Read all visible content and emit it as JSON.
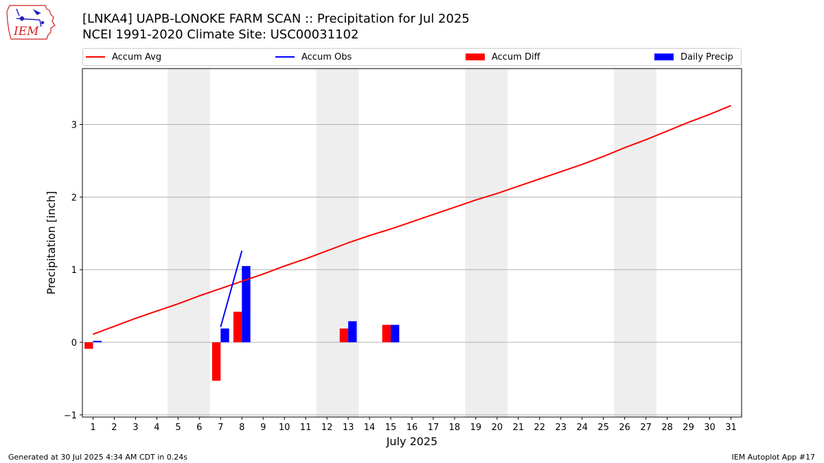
{
  "header": {
    "title_line1": "[LNKA4] UAPB-LONOKE FARM SCAN :: Precipitation for Jul 2025",
    "title_line2": "NCEI 1991-2020 Climate Site: USC00031102",
    "logo_text": "IEM"
  },
  "footer": {
    "left": "Generated at 30 Jul 2025 4:34 AM CDT in 0.24s",
    "right": "IEM Autoplot App #17"
  },
  "colors": {
    "avg": "#ff0000",
    "obs": "#0000ff",
    "diff": "#ff0000",
    "daily": "#0000ff",
    "weekend_band": "#eeeeee",
    "grid": "#b0b0b0"
  },
  "chart_data": {
    "type": "bar",
    "xlabel": "July 2025",
    "ylabel": "Precipitation [inch]",
    "xlim": [
      0.5,
      31.5
    ],
    "ylim": [
      -1.03,
      3.77
    ],
    "x_ticks": [
      1,
      2,
      3,
      4,
      5,
      6,
      7,
      8,
      9,
      10,
      11,
      12,
      13,
      14,
      15,
      16,
      17,
      18,
      19,
      20,
      21,
      22,
      23,
      24,
      25,
      26,
      27,
      28,
      29,
      30,
      31
    ],
    "y_ticks": [
      -1,
      0,
      1,
      2,
      3
    ],
    "grid": "y",
    "legend_position": "top",
    "weekend_bands": [
      [
        4.5,
        6.5
      ],
      [
        11.5,
        13.5
      ],
      [
        18.5,
        20.5
      ],
      [
        25.5,
        27.5
      ]
    ],
    "series": [
      {
        "name": "Accum Avg",
        "kind": "line",
        "x": [
          1,
          2,
          3,
          4,
          5,
          6,
          7,
          8,
          9,
          10,
          11,
          12,
          13,
          14,
          15,
          16,
          17,
          18,
          19,
          20,
          21,
          22,
          23,
          24,
          25,
          26,
          27,
          28,
          29,
          30,
          31
        ],
        "values": [
          0.11,
          0.22,
          0.33,
          0.43,
          0.53,
          0.64,
          0.74,
          0.84,
          0.94,
          1.05,
          1.15,
          1.26,
          1.37,
          1.47,
          1.56,
          1.66,
          1.76,
          1.86,
          1.96,
          2.05,
          2.15,
          2.25,
          2.35,
          2.45,
          2.56,
          2.68,
          2.79,
          2.91,
          3.03,
          3.14,
          3.26
        ]
      },
      {
        "name": "Accum Obs",
        "kind": "line",
        "x": [
          7,
          8
        ],
        "values": [
          0.21,
          1.26
        ]
      },
      {
        "name": "Accum Diff",
        "kind": "bar",
        "x": [
          1,
          7,
          8,
          13,
          15
        ],
        "values": [
          -0.09,
          -0.53,
          0.42,
          0.19,
          0.24
        ]
      },
      {
        "name": "Daily Precip",
        "kind": "bar",
        "x": [
          1,
          7,
          8,
          13,
          15
        ],
        "values": [
          0.02,
          0.19,
          1.05,
          0.29,
          0.24
        ]
      }
    ]
  }
}
